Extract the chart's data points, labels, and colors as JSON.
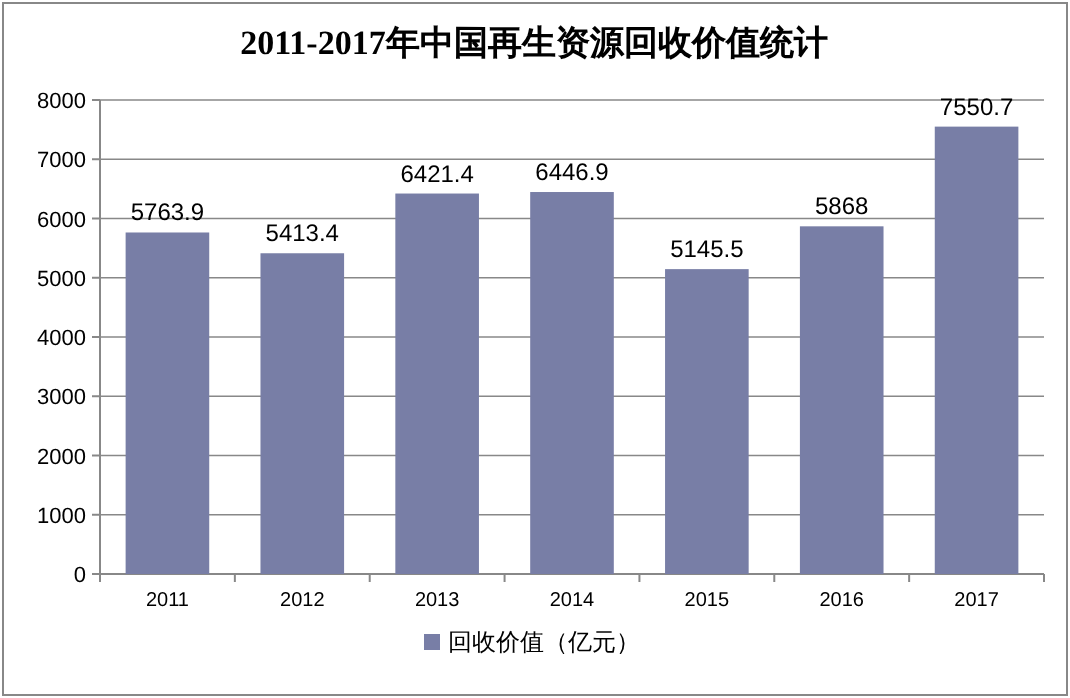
{
  "chart_data": {
    "type": "bar",
    "title": "2011-2017年中国再生资源回收价值统计",
    "categories": [
      "2011",
      "2012",
      "2013",
      "2014",
      "2015",
      "2016",
      "2017"
    ],
    "series": [
      {
        "name": "回收价值（亿元）",
        "color": "#787ea6",
        "values": [
          5763.9,
          5413.4,
          6421.4,
          6446.9,
          5145.5,
          5868,
          7550.7
        ]
      }
    ],
    "ylim": [
      0,
      8000
    ],
    "yticks": [
      0,
      1000,
      2000,
      3000,
      4000,
      5000,
      6000,
      7000,
      8000
    ],
    "grid": "y",
    "legend": "bottom",
    "data_labels": true
  }
}
